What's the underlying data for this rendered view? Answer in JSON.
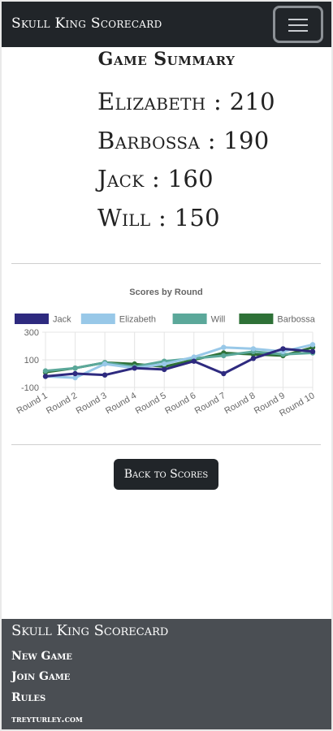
{
  "navbar": {
    "brand": "Skull King Scorecard",
    "menu_icon": "hamburger-menu-icon"
  },
  "summary": {
    "title": "Game Summary",
    "scores": [
      {
        "player": "Elizabeth",
        "score": 210
      },
      {
        "player": "Barbossa",
        "score": 190
      },
      {
        "player": "Jack",
        "score": 160
      },
      {
        "player": "Will",
        "score": 150
      }
    ]
  },
  "chart_data": {
    "type": "line",
    "title": "Scores by Round",
    "categories": [
      "Round 1",
      "Round 2",
      "Round 3",
      "Round 4",
      "Round 5",
      "Round 6",
      "Round 7",
      "Round 8",
      "Round 9",
      "Round 10"
    ],
    "ylim": [
      -100,
      300
    ],
    "yticks": [
      300,
      100,
      -100
    ],
    "grid": true,
    "legend_position": "top",
    "series": [
      {
        "name": "Jack",
        "color": "#2e2a7f",
        "values": [
          -20,
          0,
          -10,
          40,
          30,
          90,
          0,
          110,
          180,
          160
        ]
      },
      {
        "name": "Elizabeth",
        "color": "#98c8e8",
        "values": [
          -20,
          -30,
          70,
          40,
          70,
          120,
          190,
          180,
          160,
          210
        ]
      },
      {
        "name": "Will",
        "color": "#5ba89a",
        "values": [
          20,
          40,
          80,
          50,
          90,
          110,
          130,
          160,
          140,
          150
        ]
      },
      {
        "name": "Barbossa",
        "color": "#2e7137",
        "values": [
          10,
          40,
          80,
          70,
          50,
          100,
          150,
          140,
          130,
          190
        ]
      }
    ]
  },
  "actions": {
    "back_label": "Back to Scores"
  },
  "footer": {
    "title": "Skull King Scorecard",
    "links": [
      "New Game",
      "Join Game",
      "Rules",
      "treyturley.com"
    ]
  }
}
